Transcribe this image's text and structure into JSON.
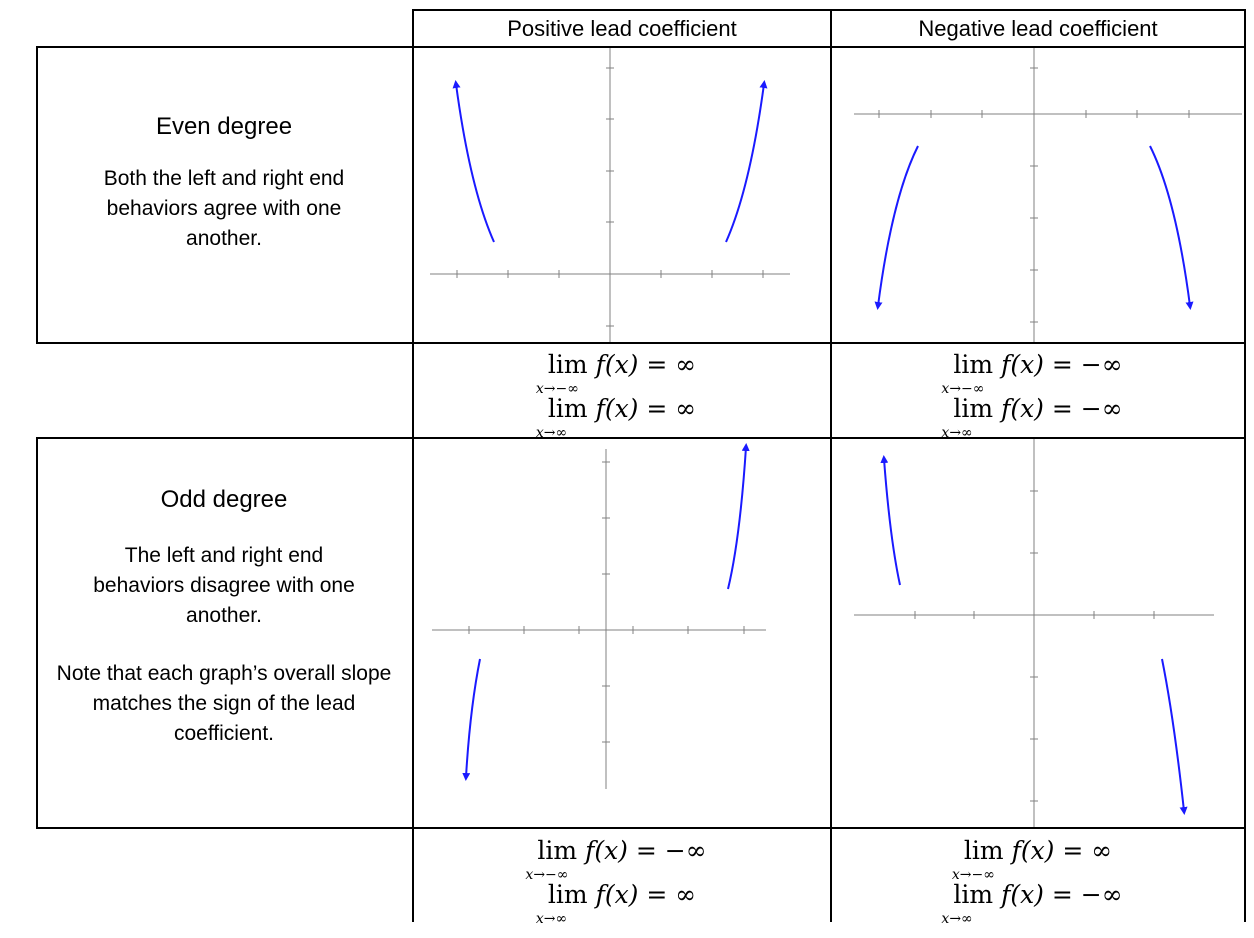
{
  "header": {
    "positive": "Positive lead coefficient",
    "negative": "Negative lead coefficient"
  },
  "even": {
    "title": "Even degree",
    "desc": "Both the left and right end behaviors agree with one another."
  },
  "odd": {
    "title": "Odd degree",
    "desc1": "The left and right end behaviors disagree with one another.",
    "desc2": "Note that each graph’s overall slope matches the sign of the lead coefficient."
  },
  "limits": {
    "even_pos": [
      {
        "lim": "lim",
        "sub": "x→−∞",
        "expr": "f(x) = ∞"
      },
      {
        "lim": "lim",
        "sub": "x→∞",
        "expr": "f(x) = ∞"
      }
    ],
    "even_neg": [
      {
        "lim": "lim",
        "sub": "x→−∞",
        "expr": "f(x) = −∞"
      },
      {
        "lim": "lim",
        "sub": "x→∞",
        "expr": "f(x) = −∞"
      }
    ],
    "odd_pos": [
      {
        "lim": "lim",
        "sub": "x→−∞",
        "expr": "f(x) = −∞"
      },
      {
        "lim": "lim",
        "sub": "x→∞",
        "expr": "f(x) = ∞"
      }
    ],
    "odd_neg": [
      {
        "lim": "lim",
        "sub": "x→−∞",
        "expr": "f(x) = ∞"
      },
      {
        "lim": "lim",
        "sub": "x→∞",
        "expr": "f(x) = −∞"
      }
    ]
  },
  "colors": {
    "curve": "#1a1aff",
    "axis": "#808080",
    "border": "#000000"
  }
}
